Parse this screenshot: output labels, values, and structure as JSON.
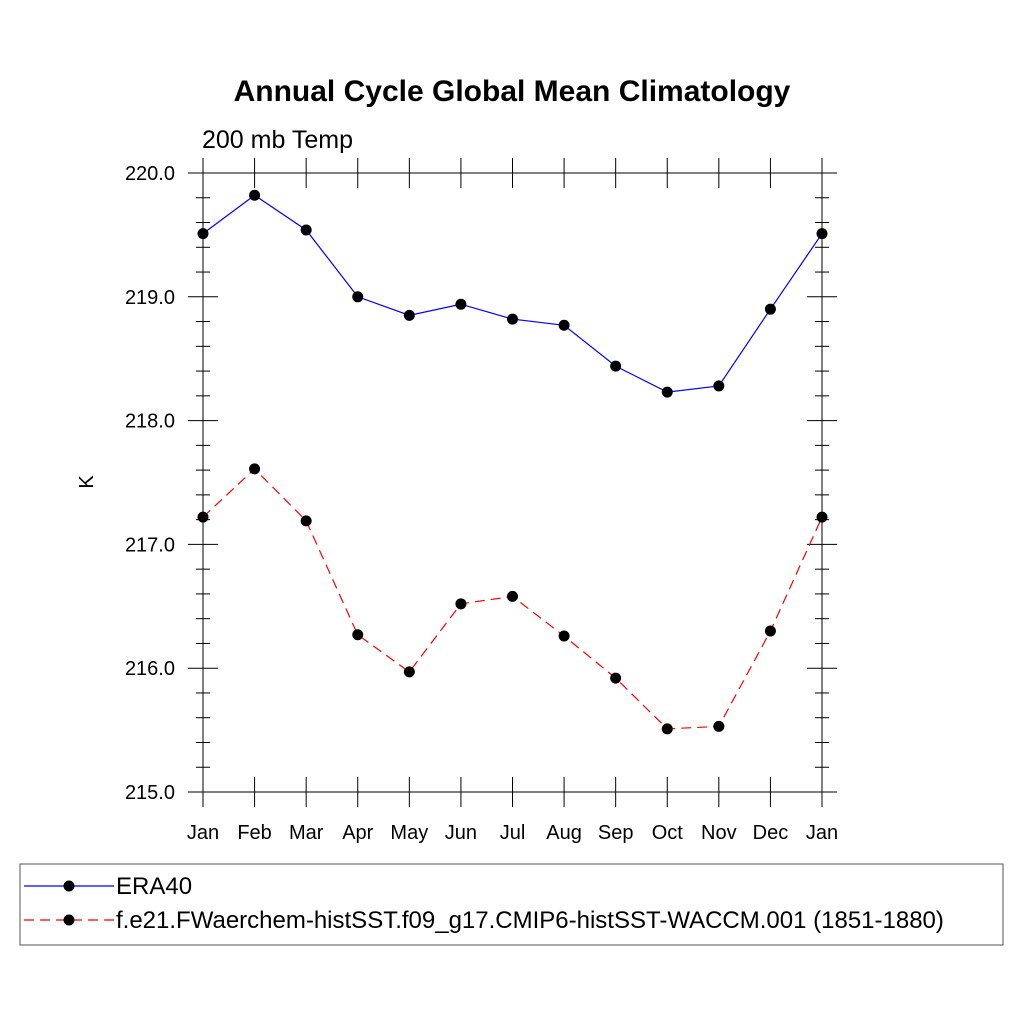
{
  "chart_data": {
    "type": "line",
    "title": "Annual Cycle Global Mean Climatology",
    "subtitle": "200 mb Temp",
    "xlabel": "",
    "ylabel": "K",
    "categories": [
      "Jan",
      "Feb",
      "Mar",
      "Apr",
      "May",
      "Jun",
      "Jul",
      "Aug",
      "Sep",
      "Oct",
      "Nov",
      "Dec",
      "Jan"
    ],
    "ylim": [
      215.0,
      220.0
    ],
    "yticks": [
      "215.0",
      "216.0",
      "217.0",
      "218.0",
      "219.0",
      "220.0"
    ],
    "grid": false,
    "legend_position": "bottom",
    "series": [
      {
        "name": "ERA40",
        "color": "#0000ff",
        "style": "solid",
        "values": [
          219.51,
          219.82,
          219.54,
          219.0,
          218.85,
          218.94,
          218.82,
          218.77,
          218.44,
          218.23,
          218.28,
          218.9,
          219.51
        ]
      },
      {
        "name": "f.e21.FWaerchem-histSST.f09_g17.CMIP6-histSST-WACCM.001 (1851-1880)",
        "color": "#ff0000",
        "style": "dashed",
        "values": [
          217.22,
          217.61,
          217.19,
          216.27,
          215.97,
          216.52,
          216.58,
          216.26,
          215.92,
          215.51,
          215.53,
          216.3,
          217.22
        ]
      }
    ]
  }
}
